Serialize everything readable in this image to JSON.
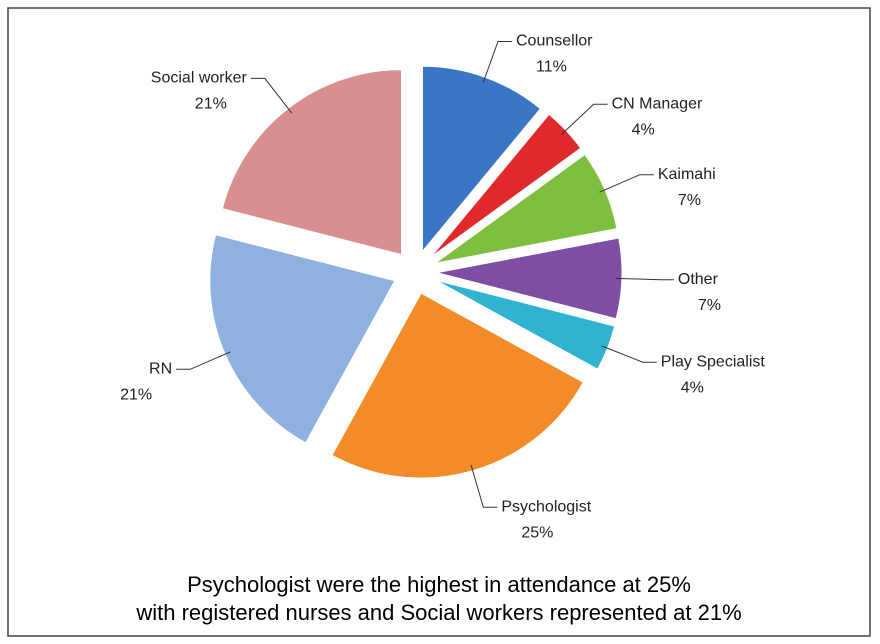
{
  "chart_data": {
    "type": "pie",
    "categories": [
      "Counsellor",
      "CN Manager",
      "Kaimahi",
      "Other",
      "Play Specialist",
      "Psychologist",
      "RN",
      "Social worker"
    ],
    "values": [
      11,
      4,
      7,
      7,
      4,
      25,
      21,
      21
    ],
    "value_labels": [
      "11%",
      "4%",
      "7%",
      "7%",
      "4%",
      "25%",
      "21%",
      "21%"
    ],
    "colors": [
      "#3a76c4",
      "#e0292b",
      "#7fbf3f",
      "#7e4ea3",
      "#2fb3d0",
      "#f28b28",
      "#8fb1e0",
      "#d98f8f"
    ],
    "caption": [
      "Psychologist were the highest in attendance at 25%",
      "with registered nurses and Social workers represented at 21%"
    ]
  }
}
